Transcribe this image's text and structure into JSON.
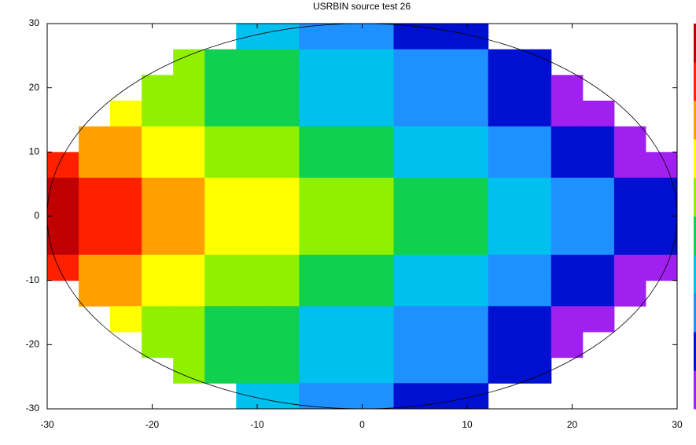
{
  "chart_data": {
    "type": "heatmap",
    "title": "USRBIN source test 26",
    "xlim": [
      -30,
      30
    ],
    "ylim": [
      -30,
      30
    ],
    "xticks": [
      -30,
      -20,
      -10,
      0,
      10,
      20,
      30
    ],
    "yticks": [
      -30,
      -20,
      -10,
      0,
      10,
      20,
      30
    ],
    "x": [
      -28.5,
      -25.5,
      -22.5,
      -19.5,
      -16.5,
      -13.5,
      -10.5,
      -7.5,
      -4.5,
      -1.5,
      1.5,
      4.5,
      7.5,
      10.5,
      13.5,
      16.5,
      19.5,
      22.5,
      25.5,
      28.5
    ],
    "y": [
      28,
      24,
      20,
      16,
      12,
      8,
      4,
      0,
      -4,
      -8,
      -12,
      -16,
      -20,
      -24,
      -28
    ],
    "z": [
      [
        null,
        null,
        null,
        null,
        null,
        null,
        4,
        4,
        3,
        3,
        3,
        2,
        2,
        2,
        null,
        null,
        null,
        null,
        null,
        null
      ],
      [
        null,
        null,
        null,
        null,
        6,
        5,
        5,
        5,
        4,
        4,
        4,
        3,
        3,
        3,
        2,
        2,
        null,
        null,
        null,
        null
      ],
      [
        null,
        null,
        null,
        6,
        6,
        5,
        5,
        5,
        4,
        4,
        4,
        3,
        3,
        3,
        2,
        2,
        1,
        null,
        null,
        null
      ],
      [
        null,
        null,
        7,
        6,
        6,
        5,
        5,
        5,
        4,
        4,
        4,
        3,
        3,
        3,
        2,
        2,
        1,
        1,
        null,
        null
      ],
      [
        null,
        8,
        8,
        7,
        7,
        6,
        6,
        6,
        5,
        5,
        5,
        4,
        4,
        4,
        3,
        3,
        2,
        2,
        1,
        null
      ],
      [
        9,
        8,
        8,
        7,
        7,
        6,
        6,
        6,
        5,
        5,
        5,
        4,
        4,
        4,
        3,
        3,
        2,
        2,
        1,
        1
      ],
      [
        10,
        9,
        9,
        8,
        8,
        7,
        7,
        7,
        6,
        6,
        6,
        5,
        5,
        5,
        4,
        4,
        3,
        3,
        2,
        2
      ],
      [
        10,
        9,
        9,
        8,
        8,
        7,
        7,
        7,
        6,
        6,
        6,
        5,
        5,
        5,
        4,
        4,
        3,
        3,
        2,
        2
      ],
      [
        10,
        9,
        9,
        8,
        8,
        7,
        7,
        7,
        6,
        6,
        6,
        5,
        5,
        5,
        4,
        4,
        3,
        3,
        2,
        2
      ],
      [
        9,
        8,
        8,
        7,
        7,
        6,
        6,
        6,
        5,
        5,
        5,
        4,
        4,
        4,
        3,
        3,
        2,
        2,
        1,
        1
      ],
      [
        null,
        8,
        8,
        7,
        7,
        6,
        6,
        6,
        5,
        5,
        5,
        4,
        4,
        4,
        3,
        3,
        2,
        2,
        1,
        null
      ],
      [
        null,
        null,
        7,
        6,
        6,
        5,
        5,
        5,
        4,
        4,
        4,
        3,
        3,
        3,
        2,
        2,
        1,
        1,
        null,
        null
      ],
      [
        null,
        null,
        null,
        6,
        6,
        5,
        5,
        5,
        4,
        4,
        4,
        3,
        3,
        3,
        2,
        2,
        1,
        null,
        null,
        null
      ],
      [
        null,
        null,
        null,
        null,
        6,
        5,
        5,
        5,
        4,
        4,
        4,
        3,
        3,
        3,
        2,
        2,
        null,
        null,
        null,
        null
      ],
      [
        null,
        null,
        null,
        null,
        null,
        null,
        4,
        4,
        3,
        3,
        3,
        2,
        2,
        2,
        null,
        null,
        null,
        null,
        null,
        null
      ]
    ],
    "zlim": [
      1,
      10
    ],
    "palette": [
      "#a020f0",
      "#0010d0",
      "#1e90ff",
      "#00c0f0",
      "#10d050",
      "#90f000",
      "#ffff00",
      "#ffa000",
      "#ff2000",
      "#c00000"
    ]
  }
}
